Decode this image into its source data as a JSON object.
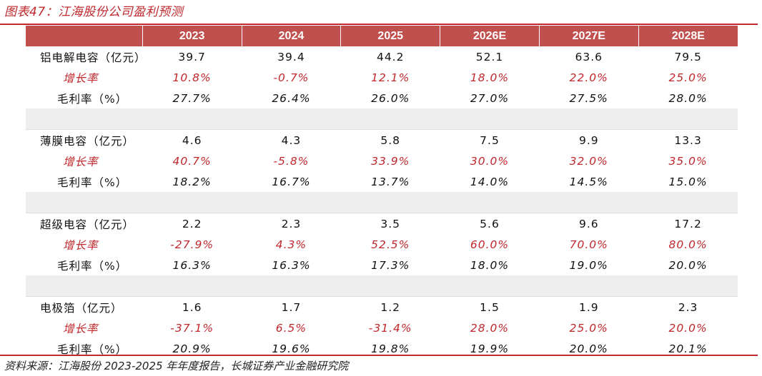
{
  "title": "图表47：江海股份公司盈利预测",
  "source": "资料来源：江海股份 2023-2025 年年度报告，长城证券产业金融研究院",
  "colors": {
    "accent": "#c0282d",
    "header_bg": "#c0504d",
    "gap_bg": "#eeeeee"
  },
  "table": {
    "headers": [
      "",
      "2023",
      "2024",
      "2025",
      "2026E",
      "2027E",
      "2028E"
    ],
    "sections": [
      {
        "name": "铝电解电容（亿元）",
        "values": [
          "39.7",
          "39.4",
          "44.2",
          "52.1",
          "63.6",
          "79.5"
        ],
        "growth_label": "增长率",
        "growth": [
          "10.8%",
          "-0.7%",
          "12.1%",
          "18.0%",
          "22.0%",
          "25.0%"
        ],
        "margin_label": "毛利率（%）",
        "margin": [
          "27.7%",
          "26.4%",
          "26.0%",
          "27.0%",
          "27.5%",
          "28.0%"
        ]
      },
      {
        "name": "薄膜电容（亿元）",
        "values": [
          "4.6",
          "4.3",
          "5.8",
          "7.5",
          "9.9",
          "13.3"
        ],
        "growth_label": "增长率",
        "growth": [
          "40.7%",
          "-5.8%",
          "33.9%",
          "30.0%",
          "32.0%",
          "35.0%"
        ],
        "margin_label": "毛利率（%）",
        "margin": [
          "18.2%",
          "16.7%",
          "13.7%",
          "14.0%",
          "14.5%",
          "15.0%"
        ]
      },
      {
        "name": "超级电容（亿元）",
        "values": [
          "2.2",
          "2.3",
          "3.5",
          "5.6",
          "9.6",
          "17.2"
        ],
        "growth_label": "增长率",
        "growth": [
          "-27.9%",
          "4.3%",
          "52.5%",
          "60.0%",
          "70.0%",
          "80.0%"
        ],
        "margin_label": "毛利率（%）",
        "margin": [
          "16.3%",
          "16.3%",
          "17.3%",
          "18.0%",
          "19.0%",
          "20.0%"
        ]
      },
      {
        "name": "电极箔（亿元）",
        "values": [
          "1.6",
          "1.7",
          "1.2",
          "1.5",
          "1.9",
          "2.3"
        ],
        "growth_label": "增长率",
        "growth": [
          "-37.1%",
          "6.5%",
          "-31.4%",
          "28.0%",
          "25.0%",
          "20.0%"
        ],
        "margin_label": "毛利率（%）",
        "margin": [
          "20.9%",
          "19.6%",
          "19.8%",
          "19.9%",
          "20.0%",
          "20.1%"
        ]
      }
    ]
  }
}
